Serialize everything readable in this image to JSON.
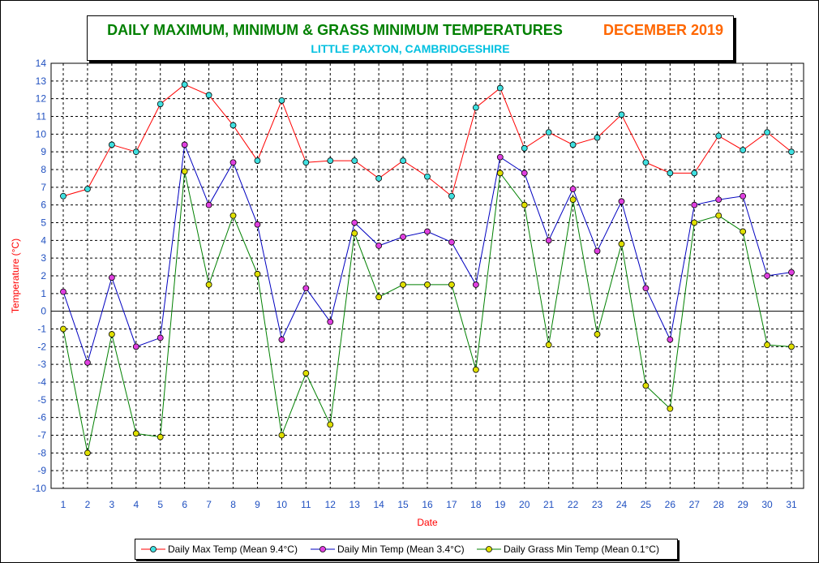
{
  "title": {
    "main": "DAILY MAXIMUM, MINIMUM & GRASS MINIMUM TEMPERATURES",
    "period": "DECEMBER 2019",
    "subtitle": "LITTLE PAXTON, CAMBRIDGESHIRE",
    "main_color": "#008000",
    "period_color": "#ff6600",
    "subtitle_color": "#00c0e0"
  },
  "colors": {
    "tick_labels": "#2050c0",
    "axis_title": "#ff0000",
    "grid": "#000000"
  },
  "chart_data": {
    "type": "line",
    "xlabel": "Date",
    "ylabel": "Temperature (°C)",
    "ylim": [
      -10,
      14
    ],
    "x": [
      1,
      2,
      3,
      4,
      5,
      6,
      7,
      8,
      9,
      10,
      11,
      12,
      13,
      14,
      15,
      16,
      17,
      18,
      19,
      20,
      21,
      22,
      23,
      24,
      25,
      26,
      27,
      28,
      29,
      30,
      31
    ],
    "grid": true,
    "legend_position": "bottom",
    "series": [
      {
        "name": "Daily Max Temp (Mean 9.4°C)",
        "line_color": "#ff0000",
        "marker_color": "#40e0e0",
        "values": [
          6.5,
          6.9,
          9.4,
          9.0,
          11.7,
          12.8,
          12.2,
          10.5,
          8.5,
          11.9,
          8.4,
          8.5,
          8.5,
          7.5,
          8.5,
          7.6,
          6.5,
          11.5,
          12.6,
          9.2,
          10.1,
          9.4,
          9.8,
          11.1,
          8.4,
          7.8,
          7.8,
          9.9,
          9.1,
          10.1,
          9.0
        ]
      },
      {
        "name": "Daily Min Temp (Mean 3.4°C)",
        "line_color": "#0000c0",
        "marker_color": "#e040e0",
        "values": [
          1.1,
          -2.9,
          1.9,
          -2.0,
          -1.5,
          9.4,
          6.0,
          8.4,
          4.9,
          -1.6,
          1.3,
          -0.6,
          5.0,
          3.7,
          4.2,
          4.5,
          3.9,
          1.5,
          8.7,
          7.8,
          4.0,
          6.9,
          3.4,
          6.2,
          1.3,
          -1.6,
          6.0,
          6.3,
          6.5,
          2.0,
          2.2
        ]
      },
      {
        "name": "Daily Grass Min Temp (Mean 0.1°C)",
        "line_color": "#008000",
        "marker_color": "#e0e000",
        "values": [
          -1.0,
          -8.0,
          -1.3,
          -6.9,
          -7.1,
          7.9,
          1.5,
          5.4,
          2.1,
          -7.0,
          -3.5,
          -6.4,
          4.4,
          0.8,
          1.5,
          1.5,
          1.5,
          -3.3,
          7.8,
          6.0,
          -1.9,
          6.3,
          -1.3,
          3.8,
          -4.2,
          -5.5,
          5.0,
          5.4,
          4.5,
          -1.9,
          -2.0
        ]
      }
    ]
  }
}
